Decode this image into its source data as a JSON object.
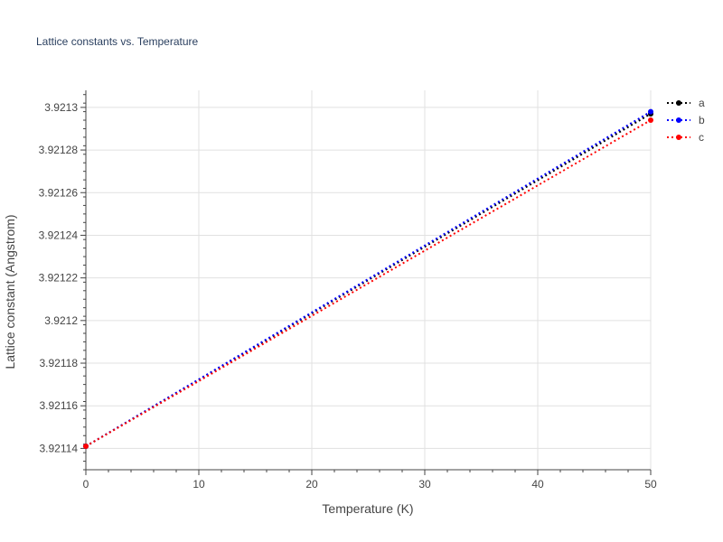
{
  "chart_data": {
    "type": "line",
    "title": "Lattice constants vs. Temperature",
    "xlabel": "Temperature (K)",
    "ylabel": "Lattice constant (Angstrom)",
    "x": [
      0,
      50
    ],
    "series": [
      {
        "name": "a",
        "color": "#000000",
        "values": [
          3.921141,
          3.921297
        ]
      },
      {
        "name": "b",
        "color": "#0000ff",
        "values": [
          3.921141,
          3.921298
        ]
      },
      {
        "name": "c",
        "color": "#ff0000",
        "values": [
          3.921141,
          3.921294
        ]
      }
    ],
    "xlim": [
      0,
      50
    ],
    "ylim": [
      3.92113,
      3.921308
    ],
    "xticks": [
      0,
      10,
      20,
      30,
      40,
      50
    ],
    "xtick_labels": [
      "0",
      "10",
      "20",
      "30",
      "40",
      "50"
    ],
    "yticks": [
      3.92114,
      3.92116,
      3.92118,
      3.9212,
      3.92122,
      3.92124,
      3.92126,
      3.92128,
      3.9213
    ],
    "ytick_labels": [
      "3.92114",
      "3.92116",
      "3.92118",
      "3.9212",
      "3.92122",
      "3.92124",
      "3.92126",
      "3.92128",
      "3.9213"
    ],
    "grid": true,
    "line_style": "dotted",
    "legend_position": "top-right"
  }
}
